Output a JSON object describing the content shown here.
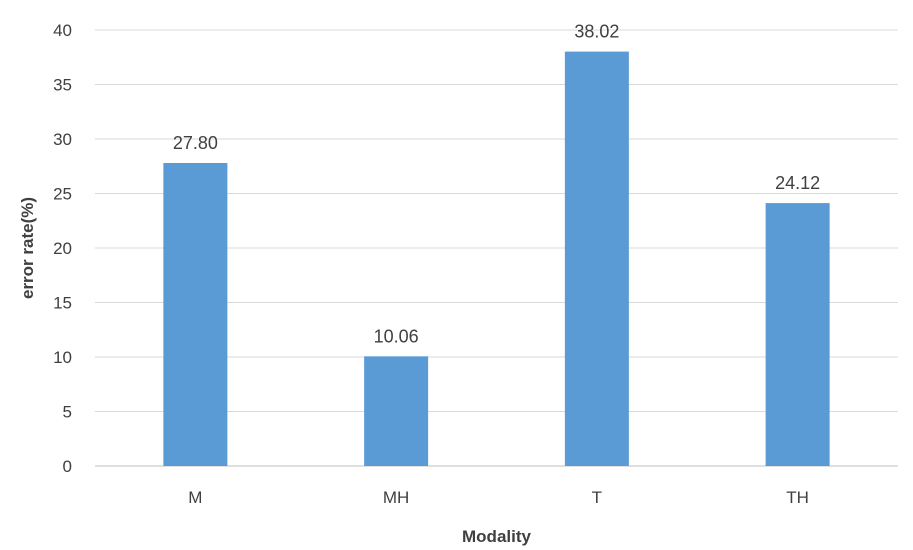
{
  "chart_data": {
    "type": "bar",
    "categories": [
      "M",
      "MH",
      "T",
      "TH"
    ],
    "values": [
      27.8,
      10.06,
      38.02,
      24.12
    ],
    "data_labels": [
      "27.80",
      "10.06",
      "38.02",
      "24.12"
    ],
    "title": "",
    "xlabel": "Modality",
    "ylabel": "error rate(%)",
    "ylim": [
      0,
      40
    ],
    "yticks": [
      0,
      5,
      10,
      15,
      20,
      25,
      30,
      35,
      40
    ],
    "grid": "horizontal",
    "legend": "none",
    "bar_color": "#5b9bd5"
  }
}
